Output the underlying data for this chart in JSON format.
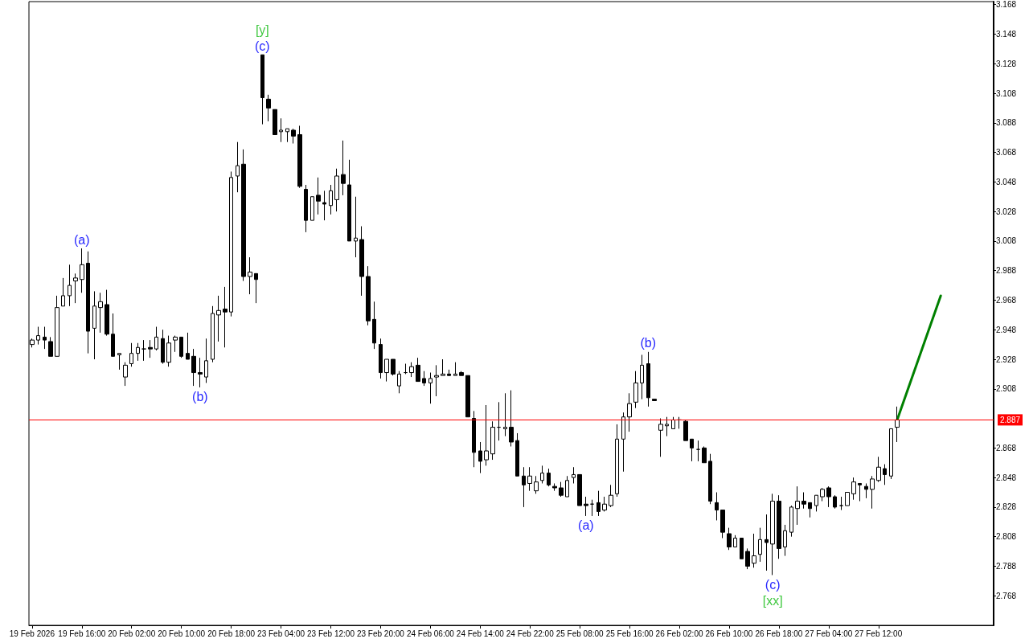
{
  "chart_data": {
    "type": "candlestick",
    "categories": [
      "19 Feb 2026",
      null,
      null,
      null,
      null,
      null,
      null,
      null,
      "19 Feb 16:00",
      null,
      null,
      null,
      null,
      null,
      null,
      null,
      "20 Feb 02:00",
      null,
      null,
      null,
      null,
      null,
      null,
      null,
      "20 Feb 10:00",
      null,
      null,
      null,
      null,
      null,
      null,
      null,
      "20 Feb 18:00",
      null,
      null,
      null,
      null,
      null,
      null,
      null,
      "23 Feb 04:00",
      null,
      null,
      null,
      null,
      null,
      null,
      null,
      "23 Feb 12:00",
      null,
      null,
      null,
      null,
      null,
      null,
      null,
      "23 Feb 20:00",
      null,
      null,
      null,
      null,
      null,
      null,
      null,
      "24 Feb 06:00",
      null,
      null,
      null,
      null,
      null,
      null,
      null,
      "24 Feb 14:00",
      null,
      null,
      null,
      null,
      null,
      null,
      null,
      "24 Feb 22:00",
      null,
      null,
      null,
      null,
      null,
      null,
      null,
      "25 Feb 08:00",
      null,
      null,
      null,
      null,
      null,
      null,
      null,
      "25 Feb 16:00",
      null,
      null,
      null,
      null,
      null,
      null,
      null,
      "26 Feb 02:00",
      null,
      null,
      null,
      null,
      null,
      null,
      null,
      "26 Feb 10:00",
      null,
      null,
      null,
      null,
      null,
      null,
      null,
      "26 Feb 18:00",
      null,
      null,
      null,
      null,
      null,
      null,
      null,
      "27 Feb 04:00",
      null,
      null,
      null,
      null,
      null,
      null,
      null,
      "27 Feb 12:00",
      null,
      null,
      null,
      null,
      null,
      null,
      null,
      null,
      null,
      null,
      null,
      null,
      null,
      null,
      null,
      null,
      null,
      null
    ],
    "ohlc": [
      [
        2.938,
        2.942,
        2.936,
        2.941
      ],
      [
        2.941,
        2.95,
        2.938,
        2.944
      ],
      [
        2.943,
        2.95,
        2.935,
        2.941
      ],
      [
        2.94,
        2.943,
        2.93,
        2.93
      ],
      [
        2.93,
        2.971,
        2.93,
        2.963
      ],
      [
        2.964,
        2.983,
        2.964,
        2.971
      ],
      [
        2.971,
        2.992,
        2.964,
        2.978
      ],
      [
        2.981,
        2.986,
        2.966,
        2.983
      ],
      [
        2.982,
        3.003,
        2.973,
        2.992
      ],
      [
        2.993,
        3.001,
        2.932,
        2.947
      ],
      [
        2.949,
        2.974,
        2.928,
        2.964
      ],
      [
        2.963,
        2.973,
        2.946,
        2.967
      ],
      [
        2.965,
        2.975,
        2.944,
        2.945
      ],
      [
        2.945,
        2.959,
        2.93,
        2.93
      ],
      [
        2.931,
        2.932,
        2.921,
        2.932
      ],
      [
        2.916,
        2.926,
        2.91,
        2.924
      ],
      [
        2.925,
        2.939,
        2.923,
        2.932
      ],
      [
        2.932,
        2.939,
        2.927,
        2.936
      ],
      [
        2.935,
        2.941,
        2.927,
        2.935
      ],
      [
        2.936,
        2.941,
        2.929,
        2.935
      ],
      [
        2.935,
        2.95,
        2.934,
        2.943
      ],
      [
        2.942,
        2.948,
        2.925,
        2.926
      ],
      [
        2.926,
        2.944,
        2.923,
        2.939
      ],
      [
        2.941,
        2.944,
        2.933,
        2.943
      ],
      [
        2.943,
        2.943,
        2.929,
        2.93
      ],
      [
        2.932,
        2.946,
        2.928,
        2.928
      ],
      [
        2.93,
        2.935,
        2.91,
        2.919
      ],
      [
        2.919,
        2.929,
        2.909,
        2.918
      ],
      [
        2.916,
        2.942,
        2.912,
        2.927
      ],
      [
        2.928,
        2.964,
        2.926,
        2.959
      ],
      [
        2.958,
        2.971,
        2.94,
        2.961
      ],
      [
        2.962,
        2.977,
        2.936,
        2.96
      ],
      [
        2.96,
        3.055,
        2.957,
        3.051
      ],
      [
        3.052,
        3.075,
        3.041,
        3.059
      ],
      [
        3.06,
        3.07,
        2.981,
        2.984
      ],
      [
        2.984,
        2.997,
        2.972,
        2.987
      ],
      [
        2.986,
        2.986,
        2.966,
        2.982
      ],
      [
        3.134,
        3.134,
        3.087,
        3.105
      ],
      [
        3.104,
        3.107,
        3.089,
        3.098
      ],
      [
        3.097,
        3.097,
        3.08,
        3.08
      ],
      [
        3.082,
        3.091,
        3.075,
        3.083
      ],
      [
        3.082,
        3.084,
        3.075,
        3.084
      ],
      [
        3.083,
        3.084,
        3.074,
        3.079
      ],
      [
        3.08,
        3.086,
        3.044,
        3.045
      ],
      [
        3.043,
        3.046,
        3.014,
        3.022
      ],
      [
        3.022,
        3.038,
        3.022,
        3.038
      ],
      [
        3.039,
        3.051,
        3.026,
        3.035
      ],
      [
        3.034,
        3.042,
        3.022,
        3.033
      ],
      [
        3.032,
        3.046,
        3.026,
        3.042
      ],
      [
        3.036,
        3.057,
        3.028,
        3.052
      ],
      [
        3.053,
        3.076,
        3.039,
        3.047
      ],
      [
        3.046,
        3.063,
        3.008,
        3.008
      ],
      [
        3.008,
        3.038,
        2.997,
        3.01
      ],
      [
        3.009,
        3.018,
        2.971,
        2.984
      ],
      [
        2.984,
        2.991,
        2.951,
        2.954
      ],
      [
        2.955,
        2.967,
        2.935,
        2.939
      ],
      [
        2.938,
        2.942,
        2.915,
        2.919
      ],
      [
        2.919,
        2.928,
        2.913,
        2.928
      ],
      [
        2.928,
        2.928,
        2.917,
        2.918
      ],
      [
        2.91,
        2.92,
        2.905,
        2.918
      ],
      [
        2.919,
        2.925,
        2.918,
        2.919
      ],
      [
        2.919,
        2.926,
        2.916,
        2.923
      ],
      [
        2.924,
        2.929,
        2.913,
        2.913
      ],
      [
        2.915,
        2.92,
        2.91,
        2.912
      ],
      [
        2.912,
        2.919,
        2.898,
        2.915
      ],
      [
        2.916,
        2.924,
        2.903,
        2.917
      ],
      [
        2.917,
        2.928,
        2.917,
        2.918
      ],
      [
        2.918,
        2.921,
        2.917,
        2.917
      ],
      [
        2.917,
        2.926,
        2.917,
        2.918
      ],
      [
        2.919,
        2.92,
        2.917,
        2.917
      ],
      [
        2.917,
        2.917,
        2.889,
        2.889
      ],
      [
        2.888,
        2.893,
        2.855,
        2.865
      ],
      [
        2.866,
        2.872,
        2.851,
        2.859
      ],
      [
        2.86,
        2.897,
        2.856,
        2.866
      ],
      [
        2.864,
        2.886,
        2.86,
        2.882
      ],
      [
        2.882,
        2.899,
        2.873,
        2.882
      ],
      [
        2.881,
        2.905,
        2.876,
        2.882
      ],
      [
        2.882,
        2.907,
        2.869,
        2.872
      ],
      [
        2.873,
        2.878,
        2.849,
        2.849
      ],
      [
        2.849,
        2.855,
        2.828,
        2.843
      ],
      [
        2.844,
        2.855,
        2.839,
        2.849
      ],
      [
        2.839,
        2.849,
        2.837,
        2.845
      ],
      [
        2.846,
        2.856,
        2.844,
        2.851
      ],
      [
        2.851,
        2.854,
        2.842,
        2.843
      ],
      [
        2.842,
        2.844,
        2.839,
        2.841
      ],
      [
        2.841,
        2.845,
        2.835,
        2.836
      ],
      [
        2.835,
        2.849,
        2.835,
        2.846
      ],
      [
        2.848,
        2.855,
        2.844,
        2.85
      ],
      [
        2.85,
        2.85,
        2.829,
        2.829
      ],
      [
        2.83,
        2.835,
        2.822,
        2.829
      ],
      [
        2.83,
        2.833,
        2.822,
        2.83
      ],
      [
        2.831,
        2.839,
        2.822,
        2.825
      ],
      [
        2.826,
        2.835,
        2.825,
        2.83
      ],
      [
        2.829,
        2.843,
        2.828,
        2.836
      ],
      [
        2.837,
        2.884,
        2.835,
        2.874
      ],
      [
        2.874,
        2.892,
        2.852,
        2.889
      ],
      [
        2.889,
        2.905,
        2.879,
        2.898
      ],
      [
        2.899,
        2.92,
        2.895,
        2.912
      ],
      [
        2.912,
        2.931,
        2.901,
        2.924
      ],
      [
        2.925,
        2.933,
        2.896,
        2.902
      ],
      [
        2.901,
        2.901,
        2.9,
        2.9
      ],
      [
        2.88,
        2.888,
        2.862,
        2.884
      ],
      [
        2.883,
        2.889,
        2.876,
        2.884
      ],
      [
        2.881,
        2.889,
        2.881,
        2.887
      ],
      [
        2.887,
        2.889,
        2.881,
        2.887
      ],
      [
        2.886,
        2.887,
        2.873,
        2.873
      ],
      [
        2.874,
        2.874,
        2.859,
        2.868
      ],
      [
        2.867,
        2.873,
        2.859,
        2.867
      ],
      [
        2.868,
        2.869,
        2.858,
        2.858
      ],
      [
        2.859,
        2.864,
        2.83,
        2.832
      ],
      [
        2.831,
        2.838,
        2.819,
        2.826
      ],
      [
        2.826,
        2.826,
        2.807,
        2.811
      ],
      [
        2.81,
        2.814,
        2.799,
        2.801
      ],
      [
        2.801,
        2.809,
        2.801,
        2.807
      ],
      [
        2.807,
        2.807,
        2.793,
        2.793
      ],
      [
        2.798,
        2.8,
        2.786,
        2.788
      ],
      [
        2.79,
        2.81,
        2.787,
        2.795
      ],
      [
        2.796,
        2.814,
        2.791,
        2.806
      ],
      [
        2.806,
        2.823,
        2.785,
        2.804
      ],
      [
        2.803,
        2.837,
        2.782,
        2.832
      ],
      [
        2.832,
        2.836,
        2.793,
        2.8
      ],
      [
        2.801,
        2.816,
        2.795,
        2.812
      ],
      [
        2.811,
        2.829,
        2.808,
        2.828
      ],
      [
        2.827,
        2.842,
        2.816,
        2.832
      ],
      [
        2.832,
        2.838,
        2.827,
        2.83
      ],
      [
        2.831,
        2.831,
        2.821,
        2.827
      ],
      [
        2.829,
        2.836,
        2.825,
        2.836
      ],
      [
        2.835,
        2.841,
        2.832,
        2.84
      ],
      [
        2.841,
        2.842,
        2.828,
        2.835
      ],
      [
        2.835,
        2.836,
        2.827,
        2.828
      ],
      [
        2.829,
        2.835,
        2.826,
        2.829
      ],
      [
        2.829,
        2.838,
        2.829,
        2.838
      ],
      [
        2.837,
        2.848,
        2.833,
        2.845
      ],
      [
        2.844,
        2.844,
        2.832,
        2.843
      ],
      [
        2.842,
        2.844,
        2.834,
        2.84
      ],
      [
        2.84,
        2.849,
        2.827,
        2.847
      ],
      [
        2.846,
        2.862,
        2.845,
        2.855
      ],
      [
        2.854,
        2.857,
        2.843,
        2.85
      ],
      [
        2.849,
        2.881,
        2.847,
        2.881
      ],
      [
        2.882,
        2.896,
        2.872,
        2.887
      ],
      null,
      null,
      null,
      null,
      null,
      null,
      null,
      null,
      null,
      null,
      null,
      null,
      null,
      null,
      null
    ],
    "series": [
      {
        "type": "line",
        "color": "#008000",
        "marker": "none",
        "values": [
          null,
          null,
          null,
          null,
          null,
          null,
          null,
          null,
          null,
          null,
          null,
          null,
          null,
          null,
          null,
          null,
          null,
          null,
          null,
          null,
          null,
          null,
          null,
          null,
          null,
          null,
          null,
          null,
          null,
          null,
          null,
          null,
          null,
          null,
          null,
          null,
          null,
          null,
          null,
          null,
          null,
          null,
          null,
          null,
          null,
          null,
          null,
          null,
          null,
          null,
          null,
          null,
          null,
          null,
          null,
          null,
          null,
          null,
          null,
          null,
          null,
          null,
          null,
          null,
          null,
          null,
          null,
          null,
          null,
          null,
          null,
          null,
          null,
          null,
          null,
          null,
          null,
          null,
          null,
          null,
          null,
          null,
          null,
          null,
          null,
          null,
          null,
          null,
          null,
          null,
          null,
          null,
          null,
          null,
          null,
          null,
          null,
          null,
          null,
          null,
          null,
          null,
          null,
          null,
          null,
          null,
          null,
          null,
          null,
          null,
          null,
          null,
          null,
          null,
          null,
          null,
          null,
          null,
          null,
          null,
          null,
          null,
          null,
          null,
          null,
          null,
          null,
          null,
          null,
          null,
          null,
          null,
          null,
          null,
          null,
          null,
          null,
          null,
          null,
          2.887,
          null,
          null,
          null,
          null,
          null,
          null,
          2.971,
          null,
          null,
          null,
          null,
          null,
          null,
          null,
          null
        ]
      }
    ],
    "ylim": [
      2.748,
      3.17
    ],
    "yticks": [
      2.768,
      2.788,
      2.808,
      2.828,
      2.848,
      2.868,
      2.908,
      2.928,
      2.948,
      2.968,
      2.988,
      3.008,
      3.028,
      3.048,
      3.068,
      3.088,
      3.108,
      3.128,
      3.148,
      3.168
    ],
    "ref_lines": [
      {
        "axis": "y",
        "value": 2.887,
        "label": "2.887",
        "color": "#ff0000"
      }
    ],
    "annotations": [
      "(a)",
      "(b)",
      "(c)",
      "[y]",
      "(a)",
      "(b)",
      "(c)",
      "[xx]"
    ]
  }
}
